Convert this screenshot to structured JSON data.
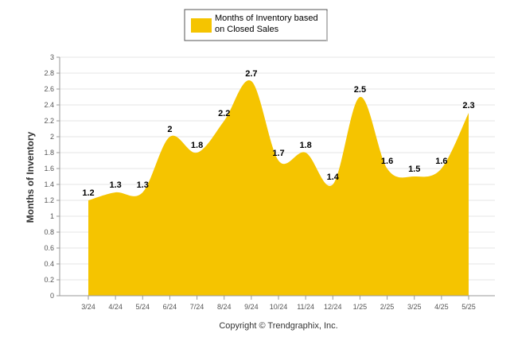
{
  "chart_data": {
    "type": "area",
    "categories": [
      "3/24",
      "4/24",
      "5/24",
      "6/24",
      "7/24",
      "8/24",
      "9/24",
      "10/24",
      "11/24",
      "12/24",
      "1/25",
      "2/25",
      "3/25",
      "4/25",
      "5/25"
    ],
    "series": [
      {
        "name": "Months of Inventory based on Closed Sales",
        "values": [
          1.2,
          1.3,
          1.3,
          2,
          1.8,
          2.2,
          2.7,
          1.7,
          1.8,
          1.4,
          2.5,
          1.6,
          1.5,
          1.6,
          2.3
        ],
        "labels": [
          "1.2",
          "1.3",
          "1.3",
          "2",
          "1.8",
          "2.2",
          "2.7",
          "1.7",
          "1.8",
          "1.4",
          "2.5",
          "1.6",
          "1.5",
          "1.6",
          "2.3"
        ]
      }
    ],
    "ylabel": "Months of Inventory",
    "ylim": [
      0,
      3
    ],
    "yticks": [
      "0",
      "0.2",
      "0.4",
      "0.6",
      "0.8",
      "1",
      "1.2",
      "1.4",
      "1.6",
      "1.8",
      "2",
      "2.2",
      "2.4",
      "2.6",
      "2.8",
      "3"
    ],
    "grid": true,
    "legend_position": "top-center",
    "legend": {
      "line1": "Months of Inventory based",
      "line2": "on Closed Sales"
    },
    "copyright": "Copyright © Trendgraphix, Inc.",
    "colors": {
      "area": "#F5C400",
      "grid": "#e6e6e6",
      "axis": "#999999"
    }
  }
}
